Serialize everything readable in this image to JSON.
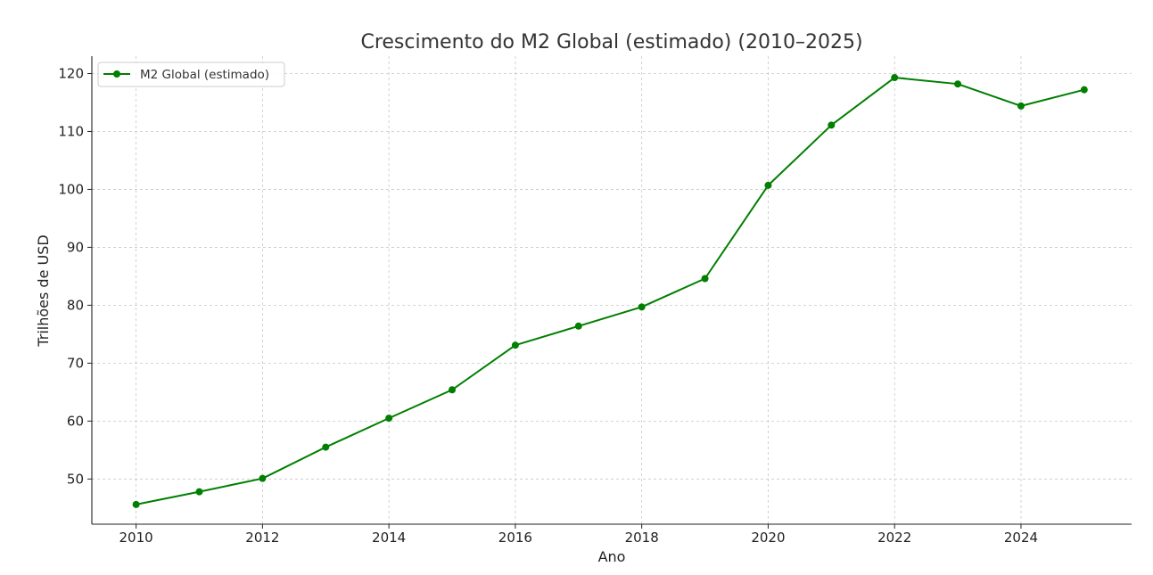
{
  "chart_data": {
    "type": "line",
    "title": "Crescimento do M2 Global (estimado) (2010–2025)",
    "xlabel": "Ano",
    "ylabel": "Trilhões de USD",
    "x": [
      2010,
      2011,
      2012,
      2013,
      2014,
      2015,
      2016,
      2017,
      2018,
      2019,
      2020,
      2021,
      2022,
      2023,
      2024,
      2025
    ],
    "series": [
      {
        "name": "M2 Global (estimado)",
        "color": "#007f00",
        "values": [
          45.6,
          47.8,
          50.1,
          55.5,
          60.5,
          65.4,
          73.1,
          76.4,
          79.7,
          84.6,
          100.7,
          111.1,
          119.3,
          118.2,
          114.4,
          117.2
        ]
      }
    ],
    "xlim": [
      2009.3,
      2025.75
    ],
    "ylim": [
      42.2,
      123
    ],
    "xticks": [
      2010,
      2012,
      2014,
      2016,
      2018,
      2020,
      2022,
      2024
    ],
    "yticks": [
      50,
      60,
      70,
      80,
      90,
      100,
      110,
      120
    ],
    "grid": true,
    "legend_position": "top-left"
  }
}
